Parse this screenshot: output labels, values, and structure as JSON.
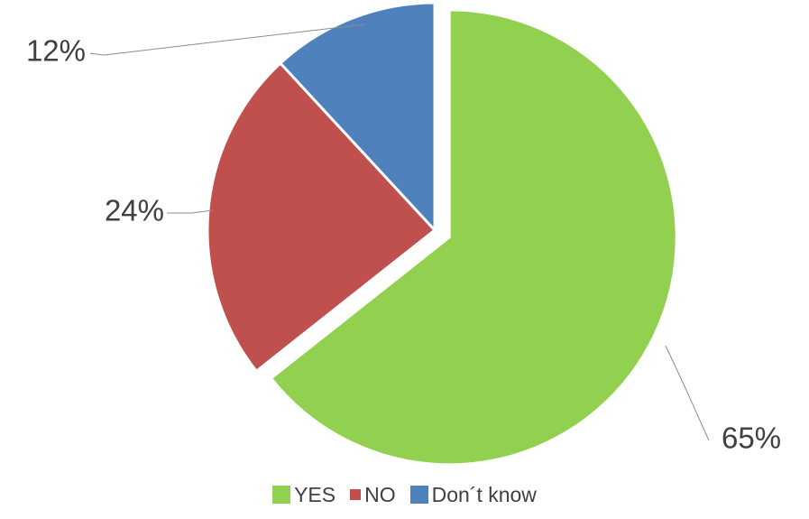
{
  "chart_data": {
    "type": "pie",
    "title": "",
    "categories": [
      "YES",
      "NO",
      "Don´t know"
    ],
    "values": [
      65,
      24,
      12
    ],
    "value_labels": [
      "65%",
      "24%",
      "12%"
    ],
    "colors": [
      "#92d050",
      "#c0504d",
      "#4f81bd"
    ],
    "exploded": [
      "YES"
    ],
    "start_angle_deg": 0,
    "direction": "clockwise",
    "legend_position": "bottom",
    "data_label_position": "outside-with-leader-lines"
  },
  "legend": {
    "items": [
      {
        "label": "YES",
        "color": "#92d050"
      },
      {
        "label": "NO",
        "color": "#c0504d"
      },
      {
        "label": "Don´t know",
        "color": "#4f81bd"
      }
    ]
  }
}
